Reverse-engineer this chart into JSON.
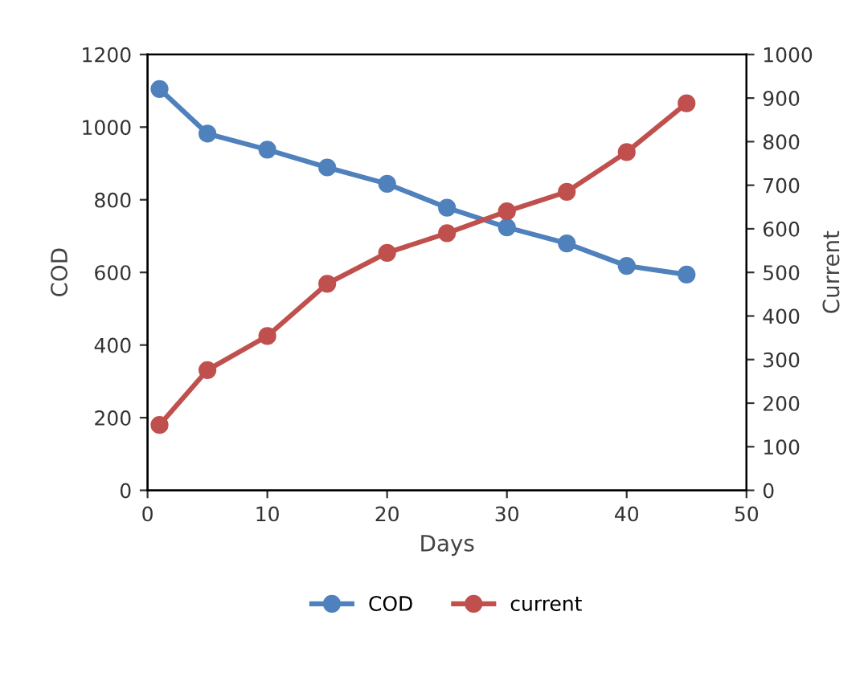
{
  "chart_data": {
    "type": "line",
    "xlabel": "Days",
    "ylabel": "COD",
    "y2label": "Current",
    "x": [
      1,
      5,
      10,
      15,
      20,
      25,
      30,
      35,
      40,
      45
    ],
    "series": [
      {
        "name": "COD",
        "color": "#4f81bd",
        "values": [
          1105,
          982,
          938,
          889,
          844,
          778,
          724,
          680,
          618,
          594
        ]
      },
      {
        "name": "current",
        "color": "#c0504d",
        "axis": "y2",
        "values": [
          150,
          276,
          354,
          474,
          545,
          590,
          640,
          685,
          776,
          888
        ]
      }
    ],
    "xlim": [
      0,
      50
    ],
    "xticks": [
      0,
      10,
      20,
      30,
      40,
      50
    ],
    "ylim": [
      0,
      1200
    ],
    "yticks": [
      0,
      200,
      400,
      600,
      800,
      1000,
      1200
    ],
    "y2lim": [
      0,
      1000
    ],
    "y2ticks": [
      0,
      100,
      200,
      300,
      400,
      500,
      600,
      700,
      800,
      900,
      1000
    ],
    "grid": false,
    "legend": "bottom",
    "marker": "circle",
    "line_style": "solid"
  }
}
